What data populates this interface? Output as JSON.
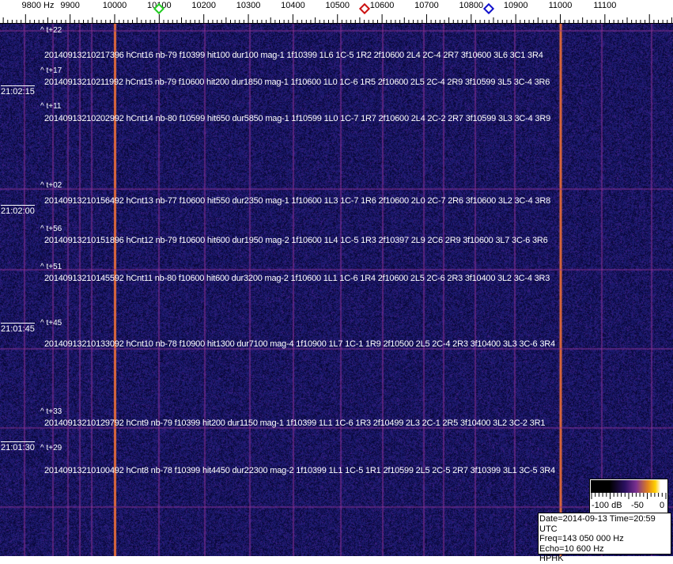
{
  "axis": {
    "unit_label": "9800 Hz",
    "labels": [
      "9900",
      "10000",
      "10100",
      "10200",
      "10300",
      "10400",
      "10500",
      "10600",
      "10700",
      "10800",
      "10900",
      "11000",
      "11100"
    ],
    "markers": [
      {
        "name": "green-marker",
        "freq": 10100,
        "color": "#22cc22"
      },
      {
        "name": "red-marker",
        "freq": 10560,
        "color": "#cc1111"
      },
      {
        "name": "blue-marker",
        "freq": 10840,
        "color": "#1111cc"
      }
    ]
  },
  "colors": {
    "background": "#1c1a6e",
    "strong_line": "#e06a3a",
    "weak_line": "#7a2a8a"
  },
  "strong_lines_hz": [
    10000,
    11000
  ],
  "time_labels": [
    "21:02:15",
    "21:02:00",
    "21:01:45",
    "21:01:30"
  ],
  "offset_labels": [
    "^ t+22",
    "^ t+17",
    "^ t+11",
    "^ t+02",
    "^ t+56",
    "^ t+51",
    "^ t+45",
    "^ t+33",
    "^ t+29"
  ],
  "detections": [
    "2014091321021739​6 hCnt16 nb-79 f10399 hit100 dur100 mag-1 1f10399 1L6 1C-5 1R2 2f10600 2L4 2C-4 2R7 3f10600 3L6 3C1 3R4",
    "20140913210211992 hCnt15 nb-79 f10600 hit200 dur1850 mag-1 1f10600 1L0 1C-6 1R5 2f10600 2L5 2C-4 2R9 3f10599 3L5 3C-4 3R6",
    "20140913210202992 hCnt14 nb-80 f10599 hit650 dur5850 mag-1 1f10599 1L0 1C-7 1R7 2f10600 2L4 2C-2 2R7 3f10599 3L3 3C-4 3R9",
    "20140913210156492 hCnt13 nb-77 f10600 hit550 dur2350 mag-1 1f10600 1L3 1C-7 1R6 2f10600 2L0 2C-7 2R6 3f10600 3L2 3C-4 3R8",
    "20140913210151896 hCnt12 nb-79 f10600 hit600 dur1950 mag-2 1f10600 1L4 1C-5 1R3 2f10397 2L9 2C6 2R9 3f10600 3L7 3C-6 3R6",
    "20140913210145592 hCnt11 nb-80 f10600 hit600 dur3200 mag-2 1f10600 1L1 1C-6 1R4 2f10600 2L5 2C-6 2R3 3f10400 3L2 3C-4 3R3",
    "20140913210133092 hCnt10 nb-78 f10900 hit1300 dur7100 mag-4 1f10900 1L7 1C-1 1R9 2f10500 2L5 2C-4 2R3 3f10400 3L3 3C-6 3R4",
    "20140913210129792 hCnt9 nb-79 f10399 hit200 dur1150 mag-1 1f10399 1L1 1C-6 1R3 2f10499 2L3 2C-1 2R5 3f10400 3L2 3C-2 3R1",
    "20140913210100492 hCnt8 nb-78 f10399 hit4450 dur22300 mag-2 1f10399 1L1 1C-5 1R1 2f10599 2L5 2C-5 2R7 3f10399 3L1 3C-5 3R4"
  ],
  "colorbar": {
    "labels": [
      "-100 dB",
      "-50",
      "0"
    ]
  },
  "info": {
    "date_time": "Date=2014-09-13 Time=20:59 UTC",
    "freq": "Freq=143 050 000 Hz",
    "echo": "Echo=10 600 Hz",
    "station": "HPHK"
  }
}
